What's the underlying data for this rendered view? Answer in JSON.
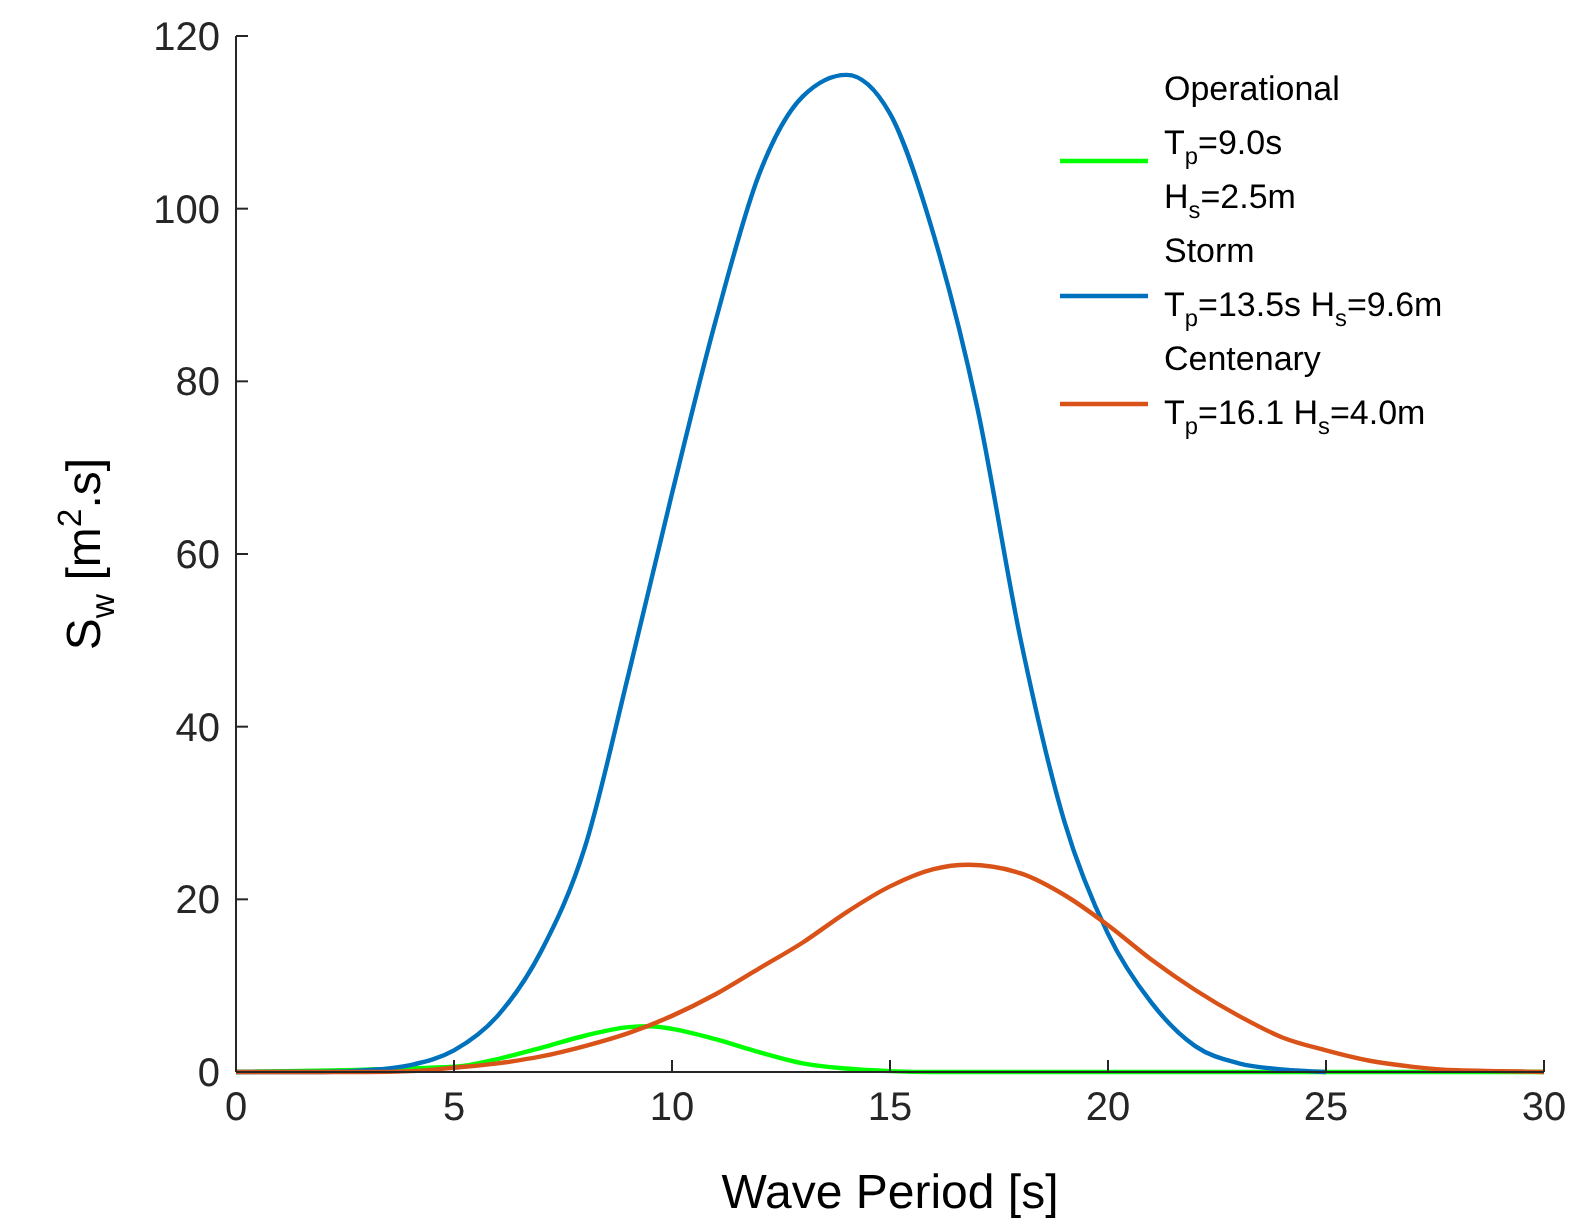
{
  "chart_data": {
    "type": "line",
    "xlabel": "Wave Period [s]",
    "ylabel": "S$_{w}$ [m$^{2}$.s]",
    "xlim": [
      0,
      30
    ],
    "xticks": [
      0,
      5,
      10,
      15,
      20,
      25,
      30
    ],
    "ylim": [
      0,
      120
    ],
    "yticks": [
      0,
      20,
      40,
      60,
      80,
      100,
      120
    ],
    "grid": false,
    "legend": "top right",
    "line_style": "solid",
    "series": [
      {
        "name": "Operational\nT$_{p}$=9.0s\nH$_{s}$=2.5m",
        "color": "#00ff00",
        "x": [
          0,
          5,
          6,
          7,
          8,
          9,
          9.5,
          10,
          11,
          12,
          13,
          14,
          15,
          16,
          20,
          25,
          30
        ],
        "values": [
          0,
          0.6,
          1.5,
          2.8,
          4.2,
          5.2,
          5.3,
          5,
          3.8,
          2.3,
          1,
          0.4,
          0.1,
          0,
          0,
          0,
          0
        ]
      },
      {
        "name": "Storm\nT$_{p}$=13.5s  H$_{s}$=9.6m",
        "color": "#0072bd",
        "x": [
          0,
          2,
          3,
          4,
          5,
          6,
          7,
          8,
          9,
          10,
          11,
          12,
          13,
          14,
          15,
          16,
          17,
          18,
          19,
          20,
          21,
          22,
          23,
          24,
          25
        ],
        "values": [
          0,
          0,
          0.2,
          0.8,
          2.5,
          6.5,
          14,
          26,
          46,
          67,
          87,
          104,
          113,
          115.5,
          111,
          97,
          77,
          50,
          29,
          16,
          8,
          3,
          1,
          0.3,
          0
        ]
      },
      {
        "name": "Centenary\nT$_{p}$=16.1  H$_{s}$=4.0m",
        "color": "#d95319",
        "x": [
          0,
          3,
          4,
          5,
          6,
          7,
          8,
          9,
          10,
          11,
          12,
          13,
          14,
          15,
          16,
          16.8,
          18,
          19,
          20,
          21,
          22,
          23,
          24,
          25,
          26,
          27,
          28,
          29,
          30
        ],
        "values": [
          0,
          0,
          0.1,
          0.5,
          1,
          1.8,
          3,
          4.5,
          6.5,
          9,
          12,
          15,
          18.5,
          21.5,
          23.5,
          24,
          23,
          20.5,
          17,
          13,
          9.5,
          6.5,
          4,
          2.5,
          1.3,
          0.6,
          0.2,
          0.1,
          0
        ]
      }
    ]
  }
}
